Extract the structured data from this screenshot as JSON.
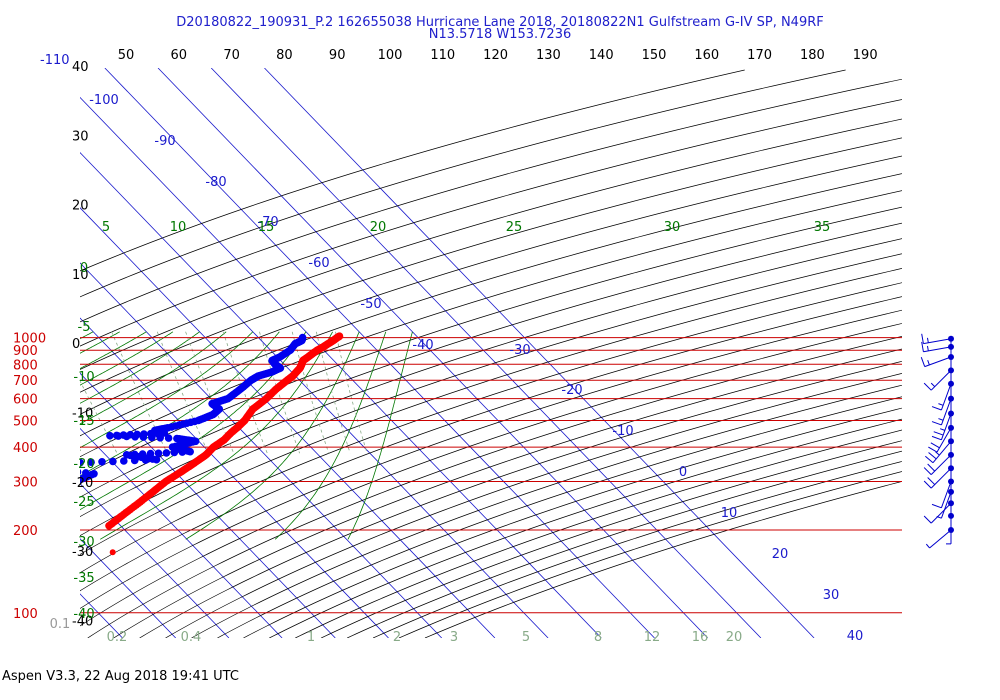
{
  "header": {
    "title_line1": "D20180822_190931_P.2 162655038 Hurricane Lane 2018, 20180822N1 Gulfstream G-IV SP, N49RF",
    "title_line2": "N13.5718 W153.7236"
  },
  "footer": {
    "text": "Aspen V3.3, 22 Aug 2018  19:41 UTC"
  },
  "colors": {
    "isobar": "#cc0000",
    "isotherm": "#1a1acc",
    "dry_adiabat": "#000000",
    "moist_adiabat": "#007700",
    "mixing_ratio": "#88aa88",
    "temperature": "#ff0000",
    "dewpoint": "#0000ee",
    "wind": "#0000cc"
  },
  "chart_data": {
    "type": "skew-t log-p",
    "xlabel": "",
    "ylabel": "",
    "pressure_ticks": [
      {
        "p": 100,
        "label": "100"
      },
      {
        "p": 200,
        "label": "200"
      },
      {
        "p": 300,
        "label": "300"
      },
      {
        "p": 400,
        "label": "400"
      },
      {
        "p": 500,
        "label": "500"
      },
      {
        "p": 600,
        "label": "600"
      },
      {
        "p": 700,
        "label": "700"
      },
      {
        "p": 800,
        "label": "800"
      },
      {
        "p": 900,
        "label": "900"
      },
      {
        "p": 1000,
        "label": "1000"
      }
    ],
    "temperature_labels_left": [
      "40",
      "30",
      "20",
      "10",
      "0",
      "-10",
      "-20",
      "-30",
      "-40"
    ],
    "top_theta_labels": [
      "50",
      "60",
      "70",
      "80",
      "90",
      "100",
      "110",
      "120",
      "130",
      "140",
      "150",
      "160",
      "170",
      "180",
      "190"
    ],
    "top_left_isotherm_label": "-110",
    "isotherm_labels": [
      "-100",
      "-90",
      "-80",
      "-70",
      "-60",
      "-50",
      "-40",
      "-30",
      "-20",
      "-10",
      "0",
      "10",
      "20",
      "30",
      "40"
    ],
    "theta_e_labels_top": [
      "5",
      "10",
      "15",
      "20",
      "25",
      "30",
      "35"
    ],
    "theta_e_labels_left": [
      "0",
      "-5",
      "-10",
      "-15",
      "-20",
      "-25",
      "-30",
      "-35",
      "-40"
    ],
    "mixing_ratio_labels": [
      "0.1",
      "0.2",
      "0.4",
      "1",
      "2",
      "3",
      "5",
      "8",
      "12",
      "16",
      "20"
    ],
    "corner_label": "0.1",
    "temperature_profile": {
      "name": "Temperature",
      "points": [
        {
          "p": 1012,
          "t": 25.5
        },
        {
          "p": 1000,
          "t": 24.8
        },
        {
          "p": 975,
          "t": 23.5
        },
        {
          "p": 950,
          "t": 22.0
        },
        {
          "p": 925,
          "t": 20.5
        },
        {
          "p": 900,
          "t": 18.8
        },
        {
          "p": 875,
          "t": 17.3
        },
        {
          "p": 850,
          "t": 15.8
        },
        {
          "p": 825,
          "t": 14.2
        },
        {
          "p": 800,
          "t": 13.3
        },
        {
          "p": 775,
          "t": 12.3
        },
        {
          "p": 750,
          "t": 10.9
        },
        {
          "p": 725,
          "t": 9.5
        },
        {
          "p": 700,
          "t": 7.7
        },
        {
          "p": 650,
          "t": 4.0
        },
        {
          "p": 600,
          "t": 0.4
        },
        {
          "p": 550,
          "t": -4.0
        },
        {
          "p": 500,
          "t": -7.6
        },
        {
          "p": 475,
          "t": -9.9
        },
        {
          "p": 450,
          "t": -12.5
        },
        {
          "p": 425,
          "t": -15.0
        },
        {
          "p": 400,
          "t": -18.3
        },
        {
          "p": 375,
          "t": -21.1
        },
        {
          "p": 350,
          "t": -24.8
        },
        {
          "p": 325,
          "t": -28.9
        },
        {
          "p": 300,
          "t": -33.5
        },
        {
          "p": 275,
          "t": -37.8
        },
        {
          "p": 250,
          "t": -42.6
        },
        {
          "p": 225,
          "t": -48.0
        },
        {
          "p": 207,
          "t": -52.2
        }
      ],
      "isolated_point": {
        "p": 166,
        "t": -56.3
      }
    },
    "dewpoint_profile": {
      "name": "Dewpoint",
      "points": [
        {
          "p": 1000,
          "t": 18.3
        },
        {
          "p": 975,
          "t": 17.6
        },
        {
          "p": 950,
          "t": 15.8
        },
        {
          "p": 900,
          "t": 13.7
        },
        {
          "p": 850,
          "t": 10.5
        },
        {
          "p": 825,
          "t": 8.4
        },
        {
          "p": 800,
          "t": 8.3
        },
        {
          "p": 775,
          "t": 8.6
        },
        {
          "p": 750,
          "t": 6.3
        },
        {
          "p": 725,
          "t": 3.0
        },
        {
          "p": 700,
          "t": 0.9
        },
        {
          "p": 650,
          "t": -2.7
        },
        {
          "p": 600,
          "t": -6.8
        },
        {
          "p": 575,
          "t": -10.7
        },
        {
          "p": 550,
          "t": -10.3
        },
        {
          "p": 525,
          "t": -12.5
        },
        {
          "p": 500,
          "t": -16.3
        },
        {
          "p": 470,
          "t": -23.4
        },
        {
          "p": 460,
          "t": -26.3
        },
        {
          "p": 450,
          "t": -25.0
        },
        {
          "p": 440,
          "t": -35.7
        },
        {
          "p": 430,
          "t": -23.6
        },
        {
          "p": 420,
          "t": -20.6
        },
        {
          "p": 400,
          "t": -26.0
        },
        {
          "p": 385,
          "t": -23.5
        },
        {
          "p": 375,
          "t": -36.0
        },
        {
          "p": 360,
          "t": -31.3
        },
        {
          "p": 350,
          "t": -48.3
        },
        {
          "p": 340,
          "t": -56.6
        },
        {
          "p": 320,
          "t": -45.6
        },
        {
          "p": 300,
          "t": -50.4
        },
        {
          "p": 290,
          "t": -63.7
        },
        {
          "p": 270,
          "t": -74.0
        },
        {
          "p": 255,
          "t": -74.8
        },
        {
          "p": 245,
          "t": -70.0
        },
        {
          "p": 232,
          "t": -62.7
        }
      ]
    },
    "wind_barbs": [
      {
        "p": 200,
        "dir": 50,
        "speed_kt": 5
      },
      {
        "p": 225,
        "dir": 360,
        "speed_kt": 5
      },
      {
        "p": 250,
        "dir": 45,
        "speed_kt": 10
      },
      {
        "p": 275,
        "dir": 20,
        "speed_kt": 5
      },
      {
        "p": 300,
        "dir": 20,
        "speed_kt": 10
      },
      {
        "p": 335,
        "dir": 45,
        "speed_kt": 20
      },
      {
        "p": 375,
        "dir": 45,
        "speed_kt": 20
      },
      {
        "p": 420,
        "dir": 40,
        "speed_kt": 25
      },
      {
        "p": 470,
        "dir": 30,
        "speed_kt": 20
      },
      {
        "p": 530,
        "dir": 20,
        "speed_kt": 25
      },
      {
        "p": 600,
        "dir": 20,
        "speed_kt": 15
      },
      {
        "p": 680,
        "dir": 20,
        "speed_kt": 15
      },
      {
        "p": 760,
        "dir": 45,
        "speed_kt": 15
      },
      {
        "p": 850,
        "dir": 70,
        "speed_kt": 15
      },
      {
        "p": 925,
        "dir": 80,
        "speed_kt": 15
      },
      {
        "p": 990,
        "dir": 80,
        "speed_kt": 15
      }
    ]
  }
}
